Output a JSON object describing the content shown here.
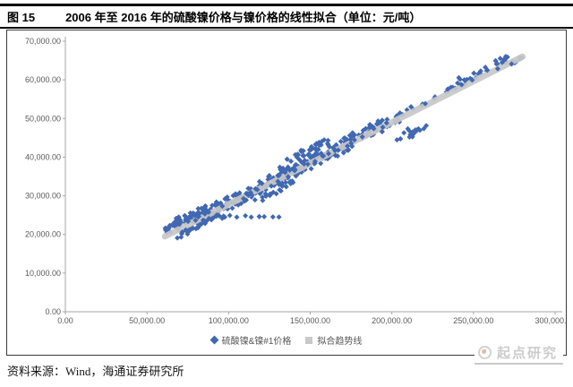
{
  "figure": {
    "label": "图 15",
    "title": "2006 年至 2016 年的硫酸镍价格与镍价格的线性拟合（单位：元/吨）"
  },
  "source": "资料来源：Wind，海通证券研究所",
  "watermark": {
    "text": "起点研究",
    "logo": "qidian-circle-logo"
  },
  "colors": {
    "scatter": "#4168b1",
    "trend": "#c8c8c8",
    "axis": "#a6a6a6",
    "tick_label": "#595959",
    "watermark": "#cccccc"
  },
  "chart_data": {
    "type": "scatter",
    "title": "2006 年至 2016 年的硫酸镍价格与镍价格的线性拟合",
    "unit": "元/吨",
    "grid": false,
    "legend_position": "bottom",
    "x_axis": {
      "min": 0,
      "max": 300000,
      "step": 50000,
      "tick_labels": [
        "0.00",
        "50,000.00",
        "100,000.00",
        "150,000.00",
        "200,000.00",
        "250,000.00",
        "300,000.00"
      ]
    },
    "y_axis": {
      "min": 0,
      "max": 70000,
      "step": 10000,
      "tick_labels": [
        "0.00",
        "10,000.00",
        "20,000.00",
        "30,000.00",
        "40,000.00",
        "50,000.00",
        "60,000.00",
        "70,000.00"
      ]
    },
    "legend": [
      {
        "label": "硫酸镍&镍#1价格",
        "marker": "diamond",
        "color": "#4168b1"
      },
      {
        "label": "拟合趋势线",
        "marker": "square",
        "color": "#c8c8c8"
      }
    ],
    "trend_line": {
      "slope": 0.2123,
      "intercept": 6550,
      "x_start": 61000,
      "x_end": 280000
    },
    "scatter_series": {
      "name": "硫酸镍&镍#1价格",
      "marker": "diamond",
      "x_range": [
        61000,
        280000
      ],
      "y_range": [
        19000,
        66500
      ],
      "clusters": [
        {
          "n": 70,
          "x": [
            61000,
            86000
          ],
          "dy": 1700,
          "jy": 1900
        },
        {
          "n": 35,
          "x": [
            68000,
            97000
          ],
          "dy": -1600,
          "jy": 1400
        },
        {
          "n": 9,
          "x": [
            95000,
            133000
          ],
          "y_abs": 24700,
          "jy": 250,
          "even": true
        },
        {
          "n": 120,
          "x": [
            84000,
            135000
          ],
          "dy": 200,
          "jy": 2400
        },
        {
          "n": 130,
          "x": [
            130000,
            176000
          ],
          "dy": 300,
          "jy": 2600
        },
        {
          "n": 28,
          "x": [
            135000,
            162000
          ],
          "dy": 3600,
          "jy": 1300
        },
        {
          "n": 20,
          "x": [
            118000,
            140000
          ],
          "dy": -2800,
          "jy": 1200
        },
        {
          "n": 48,
          "x": [
            176000,
            205000
          ],
          "dy": 400,
          "jy": 2200
        },
        {
          "n": 18,
          "x": [
            203000,
            222000
          ],
          "dy": -5200,
          "jy": 1900
        },
        {
          "n": 10,
          "x": [
            205000,
            228000
          ],
          "dy": 800,
          "jy": 800
        },
        {
          "n": 22,
          "x": [
            232000,
            252000
          ],
          "dy": 1300,
          "jy": 1600
        },
        {
          "n": 26,
          "x": [
            249000,
            272000
          ],
          "dy": 1300,
          "jy": 1400
        },
        {
          "n": 7,
          "x": [
            271000,
            280000
          ],
          "dy": -200,
          "jy": 900
        },
        {
          "n": 32,
          "x": [
            95000,
            200000
          ],
          "dy": 0,
          "jy": 3200
        }
      ]
    }
  }
}
